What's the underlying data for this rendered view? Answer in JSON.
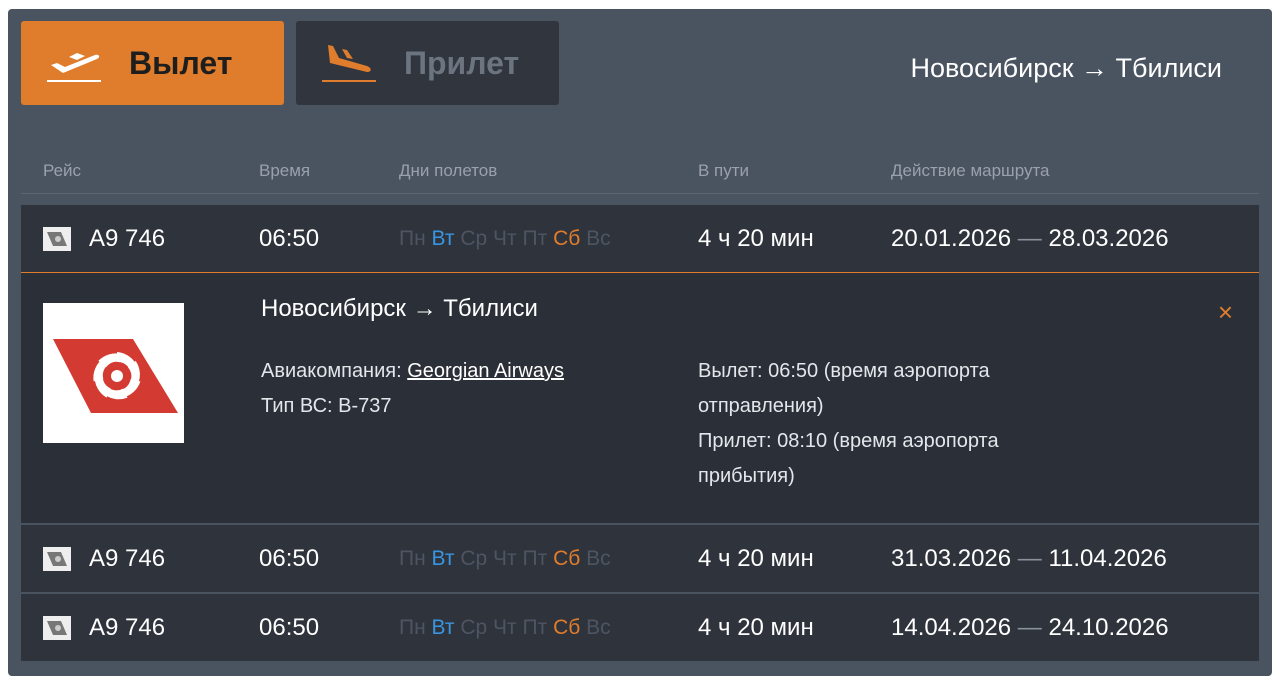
{
  "tabs": [
    {
      "label": "Вылет",
      "icon": "plane-takeoff-icon",
      "active": true
    },
    {
      "label": "Прилет",
      "icon": "plane-landing-icon",
      "active": false
    }
  ],
  "route": "Новосибирск → Тбилиси",
  "headers": [
    "Рейс",
    "Время",
    "Дни полетов",
    "В пути",
    "Действие маршрута"
  ],
  "days": [
    "Пн",
    "Вт",
    "Ср",
    "Чт",
    "Пт",
    "Сб",
    "Вс"
  ],
  "colors": {
    "accent": "#e07d2c",
    "active_day_blue": "#3a95e0",
    "panel": "#4a5360",
    "row": "#2e333c"
  },
  "flights": [
    {
      "flight": "A9 746",
      "time": "06:50",
      "duration": "4 ч 20 мин",
      "from": "20.01.2026",
      "to": "28.03.2026"
    },
    {
      "flight": "A9 746",
      "time": "06:50",
      "duration": "4 ч 20 мин",
      "from": "31.03.2026",
      "to": "11.04.2026"
    },
    {
      "flight": "A9 746",
      "time": "06:50",
      "duration": "4 ч 20 мин",
      "from": "14.04.2026",
      "to": "24.10.2026"
    }
  ],
  "dash": "—",
  "detail": {
    "route": "Новосибирск → Тбилиси",
    "airline_label": "Авиакомпания:",
    "airline": "Georgian Airways",
    "aircraft": "Тип ВС: B-737",
    "departure": "Вылет: 06:50 (время аэропорта отправления)",
    "arrival": "Прилет: 08:10 (время аэропорта прибытия)",
    "close": "×"
  }
}
